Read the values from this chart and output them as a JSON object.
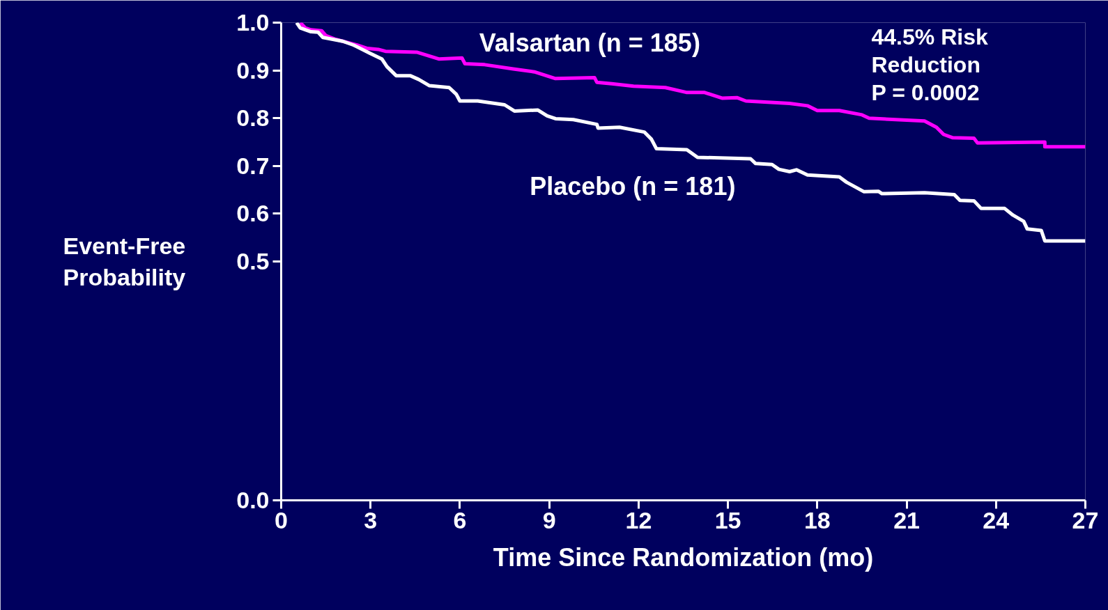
{
  "chart_data": {
    "type": "line",
    "xlabel": "Time Since Randomization (mo)",
    "ylabel": "Event-Free Probability",
    "xlim": [
      0,
      27
    ],
    "xticks": [
      0,
      3,
      6,
      9,
      12,
      15,
      18,
      21,
      24,
      27
    ],
    "ylim": [
      0.0,
      1.0
    ],
    "yticks": [
      {
        "value": 0.0,
        "label": "0.0"
      },
      {
        "value": 0.5,
        "label": "0.5"
      },
      {
        "value": 0.6,
        "label": "0.6"
      },
      {
        "value": 0.7,
        "label": "0.7"
      },
      {
        "value": 0.8,
        "label": "0.8"
      },
      {
        "value": 0.9,
        "label": "0.9"
      },
      {
        "value": 1.0,
        "label": "1.0"
      }
    ],
    "grid": false,
    "line_style": "solid",
    "marker": "none",
    "series": [
      {
        "name": "Valsartan (n = 185)",
        "color": "#ff00ff",
        "x": [
          0.64,
          0.81,
          1.0,
          1.36,
          1.5,
          1.83,
          2.55,
          2.9,
          3.26,
          3.5,
          4.57,
          5.29,
          6.07,
          6.17,
          6.83,
          7.79,
          8.5,
          9.21,
          10.52,
          10.6,
          11.1,
          11.83,
          12.9,
          13.6,
          14.2,
          14.8,
          15.3,
          15.6,
          17.07,
          17.67,
          18.0,
          18.74,
          19.5,
          19.74,
          21.6,
          22.0,
          22.24,
          22.55,
          23.26,
          23.38,
          25.64,
          25.64,
          27.0
        ],
        "values": [
          1.0,
          0.989,
          0.985,
          0.983,
          0.973,
          0.965,
          0.953,
          0.946,
          0.944,
          0.94,
          0.938,
          0.924,
          0.926,
          0.914,
          0.912,
          0.903,
          0.897,
          0.883,
          0.885,
          0.875,
          0.872,
          0.867,
          0.864,
          0.854,
          0.854,
          0.842,
          0.843,
          0.836,
          0.831,
          0.826,
          0.816,
          0.816,
          0.807,
          0.8,
          0.794,
          0.781,
          0.766,
          0.759,
          0.758,
          0.748,
          0.75,
          0.74,
          0.74
        ]
      },
      {
        "name": "Placebo (n = 181)",
        "color": "#ffffff",
        "x": [
          0.52,
          0.64,
          1.0,
          1.24,
          1.4,
          2.07,
          2.43,
          2.98,
          3.38,
          3.55,
          3.86,
          4.33,
          4.62,
          4.98,
          5.64,
          5.88,
          6.0,
          6.6,
          7.5,
          7.83,
          8.62,
          8.93,
          9.21,
          9.81,
          10.6,
          10.64,
          11.36,
          12.19,
          12.43,
          12.6,
          13.62,
          13.98,
          15.76,
          15.93,
          16.48,
          16.71,
          17.07,
          17.3,
          17.67,
          18.74,
          18.98,
          19.57,
          20.05,
          20.17,
          21.6,
          22.6,
          22.79,
          23.26,
          23.5,
          24.29,
          24.57,
          24.93,
          25.05,
          25.52,
          25.64,
          27.0
        ],
        "values": [
          1.0,
          0.989,
          0.981,
          0.98,
          0.969,
          0.961,
          0.953,
          0.936,
          0.924,
          0.908,
          0.889,
          0.889,
          0.881,
          0.868,
          0.864,
          0.85,
          0.836,
          0.836,
          0.828,
          0.815,
          0.817,
          0.805,
          0.799,
          0.797,
          0.787,
          0.779,
          0.781,
          0.771,
          0.756,
          0.736,
          0.734,
          0.718,
          0.715,
          0.705,
          0.703,
          0.693,
          0.688,
          0.692,
          0.681,
          0.677,
          0.666,
          0.646,
          0.647,
          0.642,
          0.644,
          0.64,
          0.628,
          0.627,
          0.611,
          0.611,
          0.597,
          0.584,
          0.568,
          0.565,
          0.543,
          0.543
        ]
      }
    ],
    "annotations": [
      "44.5% Risk",
      "Reduction",
      "P = 0.0002"
    ]
  }
}
